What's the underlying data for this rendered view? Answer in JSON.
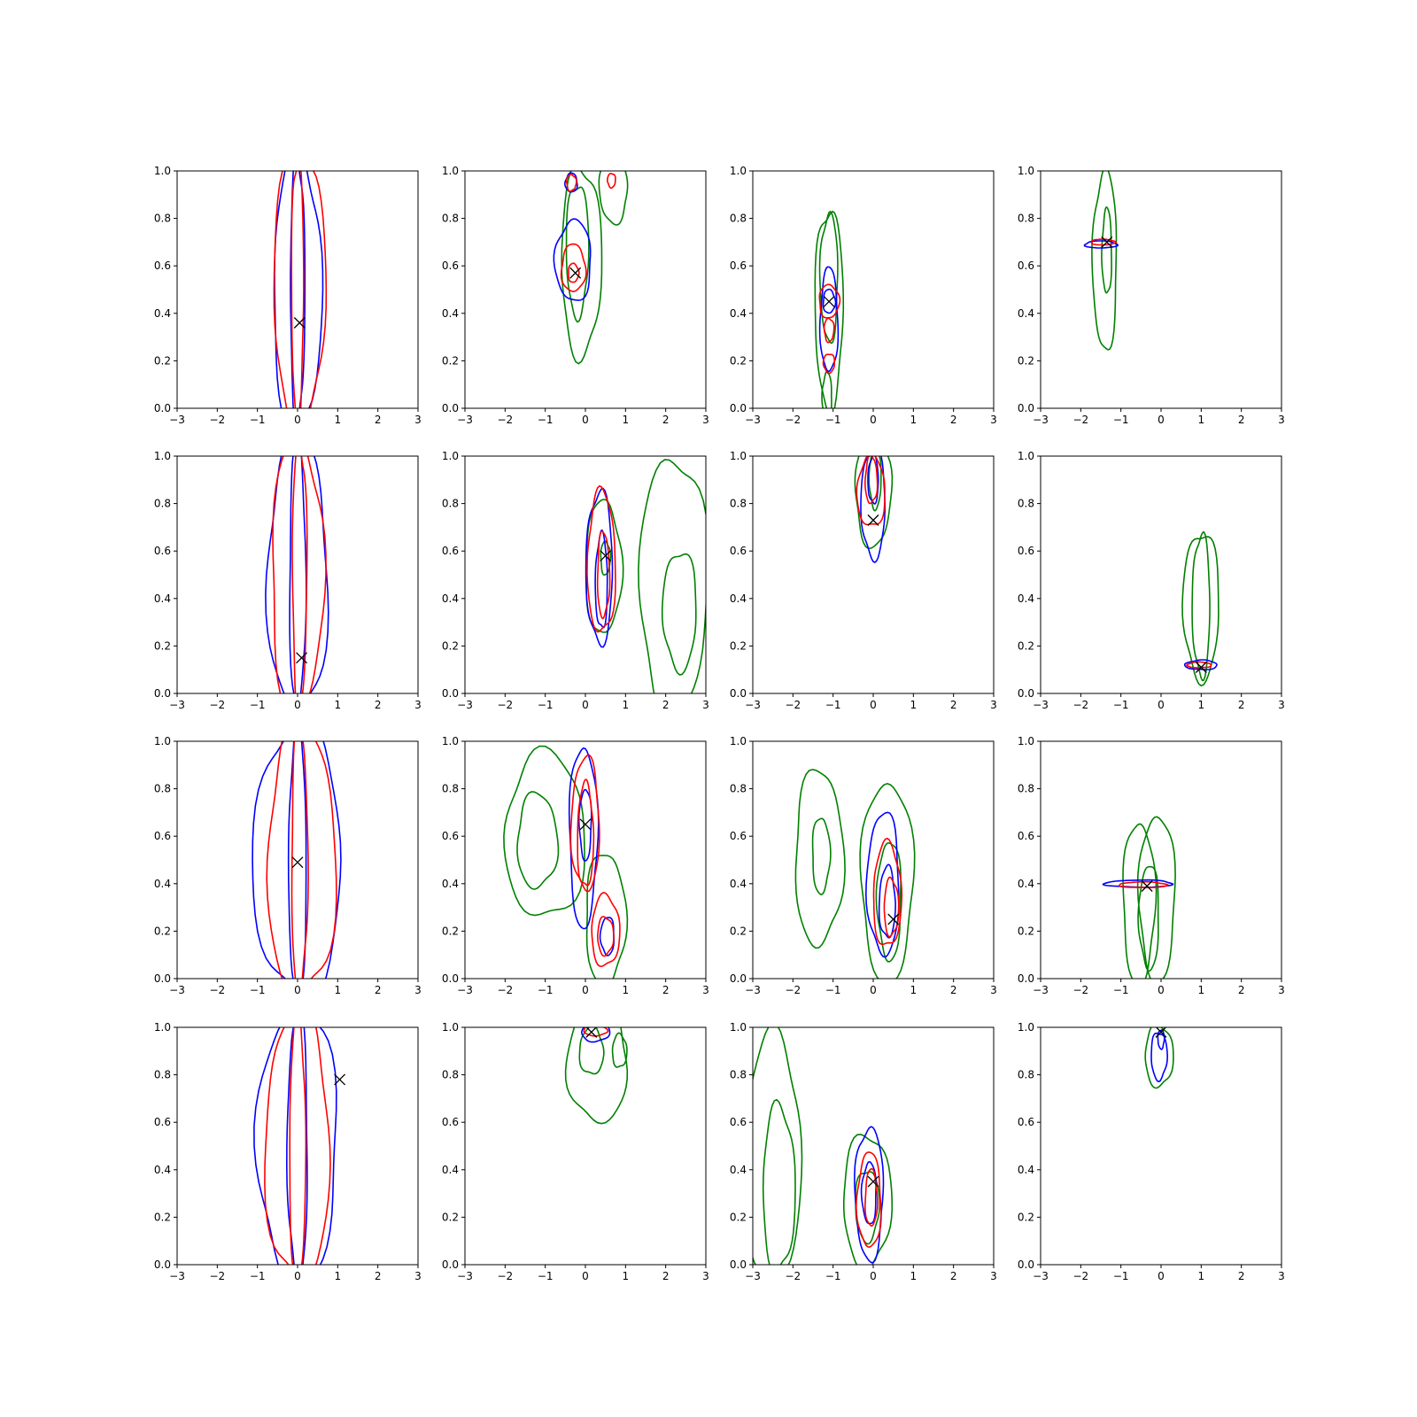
{
  "figure": {
    "grid_rows": 4,
    "grid_cols": 4,
    "colors": {
      "blue": "#0000ff",
      "red": "#ff0000",
      "green": "#008000",
      "marker": "#000000"
    },
    "x_ticks": [
      -3,
      -2,
      -1,
      0,
      1,
      2,
      3
    ],
    "x_tick_labels": [
      "−3",
      "−2",
      "−1",
      "0",
      "1",
      "2",
      "3"
    ],
    "y_ticks": [
      0.0,
      0.2,
      0.4,
      0.6,
      0.8,
      1.0
    ],
    "y_tick_labels": [
      "0.0",
      "0.2",
      "0.4",
      "0.6",
      "0.8",
      "1.0"
    ]
  },
  "chart_data": [
    {
      "type": "contour",
      "xlim": [
        -3,
        3
      ],
      "ylim": [
        0,
        1
      ],
      "marker": [
        0.05,
        0.36
      ],
      "series": [
        {
          "color": "blue",
          "contours": [
            {
              "cx": 0.0,
              "cy": 0.5,
              "rx": 0.6,
              "ry": 0.58
            },
            {
              "cx": 0.0,
              "cy": 0.5,
              "rx": 0.18,
              "ry": 0.57
            }
          ]
        },
        {
          "color": "red",
          "contours": [
            {
              "cx": 0.05,
              "cy": 0.5,
              "rx": 0.65,
              "ry": 0.58
            },
            {
              "cx": 0.0,
              "cy": 0.5,
              "rx": 0.15,
              "ry": 0.57
            }
          ]
        }
      ]
    },
    {
      "type": "contour",
      "xlim": [
        -3,
        3
      ],
      "ylim": [
        0,
        1
      ],
      "marker": [
        -0.25,
        0.57
      ],
      "series": [
        {
          "color": "green",
          "contours": [
            {
              "cx": -0.1,
              "cy": 0.62,
              "rx": 0.5,
              "ry": 0.4
            },
            {
              "cx": -0.2,
              "cy": 0.67,
              "rx": 0.28,
              "ry": 0.28
            },
            {
              "cx": 0.7,
              "cy": 0.92,
              "rx": 0.35,
              "ry": 0.14
            }
          ]
        },
        {
          "color": "blue",
          "contours": [
            {
              "cx": -0.3,
              "cy": 0.62,
              "rx": 0.45,
              "ry": 0.17
            },
            {
              "cx": -0.35,
              "cy": 0.95,
              "rx": 0.15,
              "ry": 0.04
            }
          ]
        },
        {
          "color": "red",
          "contours": [
            {
              "cx": -0.3,
              "cy": 0.59,
              "rx": 0.3,
              "ry": 0.1
            },
            {
              "cx": -0.3,
              "cy": 0.57,
              "rx": 0.13,
              "ry": 0.04
            },
            {
              "cx": -0.35,
              "cy": 0.95,
              "rx": 0.12,
              "ry": 0.035
            },
            {
              "cx": 0.65,
              "cy": 0.96,
              "rx": 0.1,
              "ry": 0.03
            }
          ]
        }
      ]
    },
    {
      "type": "contour",
      "xlim": [
        -3,
        3
      ],
      "ylim": [
        0,
        1
      ],
      "marker": [
        -1.1,
        0.45
      ],
      "series": [
        {
          "color": "green",
          "contours": [
            {
              "cx": -1.1,
              "cy": 0.42,
              "rx": 0.35,
              "ry": 0.42
            },
            {
              "cx": -1.1,
              "cy": 0.55,
              "rx": 0.22,
              "ry": 0.27
            },
            {
              "cx": -1.15,
              "cy": 0.05,
              "rx": 0.12,
              "ry": 0.1
            }
          ]
        },
        {
          "color": "blue",
          "contours": [
            {
              "cx": -1.1,
              "cy": 0.37,
              "rx": 0.22,
              "ry": 0.22
            },
            {
              "cx": -1.1,
              "cy": 0.45,
              "rx": 0.15,
              "ry": 0.05
            }
          ]
        },
        {
          "color": "red",
          "contours": [
            {
              "cx": -1.1,
              "cy": 0.45,
              "rx": 0.25,
              "ry": 0.07
            },
            {
              "cx": -1.1,
              "cy": 0.33,
              "rx": 0.12,
              "ry": 0.05
            },
            {
              "cx": -1.1,
              "cy": 0.19,
              "rx": 0.14,
              "ry": 0.04
            }
          ]
        }
      ]
    },
    {
      "type": "contour",
      "xlim": [
        -3,
        3
      ],
      "ylim": [
        0,
        1
      ],
      "marker": [
        -1.35,
        0.7
      ],
      "series": [
        {
          "color": "green",
          "contours": [
            {
              "cx": -1.4,
              "cy": 0.62,
              "rx": 0.3,
              "ry": 0.38
            },
            {
              "cx": -1.35,
              "cy": 0.66,
              "rx": 0.12,
              "ry": 0.18
            }
          ]
        },
        {
          "color": "blue",
          "contours": [
            {
              "cx": -1.5,
              "cy": 0.69,
              "rx": 0.4,
              "ry": 0.015
            }
          ]
        },
        {
          "color": "red",
          "contours": [
            {
              "cx": -1.45,
              "cy": 0.7,
              "rx": 0.3,
              "ry": 0.012
            }
          ]
        }
      ]
    },
    {
      "type": "contour",
      "xlim": [
        -3,
        3
      ],
      "ylim": [
        0,
        1
      ],
      "marker": [
        0.1,
        0.15
      ],
      "series": [
        {
          "color": "blue",
          "contours": [
            {
              "cx": 0.0,
              "cy": 0.5,
              "rx": 0.75,
              "ry": 0.58
            },
            {
              "cx": 0.0,
              "cy": 0.5,
              "rx": 0.2,
              "ry": 0.57
            }
          ]
        },
        {
          "color": "red",
          "contours": [
            {
              "cx": 0.0,
              "cy": 0.5,
              "rx": 0.65,
              "ry": 0.58
            },
            {
              "cx": 0.05,
              "cy": 0.5,
              "rx": 0.18,
              "ry": 0.57
            }
          ]
        }
      ]
    },
    {
      "type": "contour",
      "xlim": [
        -3,
        3
      ],
      "ylim": [
        0,
        1
      ],
      "marker": [
        0.5,
        0.58
      ],
      "series": [
        {
          "color": "green",
          "contours": [
            {
              "cx": 0.45,
              "cy": 0.53,
              "rx": 0.45,
              "ry": 0.28
            },
            {
              "cx": 0.5,
              "cy": 0.57,
              "rx": 0.12,
              "ry": 0.07
            },
            {
              "cx": 2.2,
              "cy": 0.45,
              "rx": 0.85,
              "ry": 0.55
            },
            {
              "cx": 2.35,
              "cy": 0.35,
              "rx": 0.42,
              "ry": 0.25
            }
          ]
        },
        {
          "color": "blue",
          "contours": [
            {
              "cx": 0.35,
              "cy": 0.53,
              "rx": 0.33,
              "ry": 0.32
            },
            {
              "cx": 0.4,
              "cy": 0.47,
              "rx": 0.15,
              "ry": 0.2
            }
          ]
        },
        {
          "color": "red",
          "contours": [
            {
              "cx": 0.4,
              "cy": 0.55,
              "rx": 0.35,
              "ry": 0.3
            },
            {
              "cx": 0.45,
              "cy": 0.5,
              "rx": 0.15,
              "ry": 0.18
            }
          ]
        }
      ]
    },
    {
      "type": "contour",
      "xlim": [
        -3,
        3
      ],
      "ylim": [
        0,
        1
      ],
      "marker": [
        0.0,
        0.73
      ],
      "series": [
        {
          "color": "green",
          "contours": [
            {
              "cx": 0.0,
              "cy": 0.85,
              "rx": 0.45,
              "ry": 0.23
            },
            {
              "cx": 0.05,
              "cy": 0.9,
              "rx": 0.15,
              "ry": 0.12
            }
          ]
        },
        {
          "color": "blue",
          "contours": [
            {
              "cx": 0.0,
              "cy": 0.8,
              "rx": 0.3,
              "ry": 0.23
            },
            {
              "cx": 0.0,
              "cy": 0.9,
              "rx": 0.13,
              "ry": 0.1
            }
          ]
        },
        {
          "color": "red",
          "contours": [
            {
              "cx": -0.05,
              "cy": 0.85,
              "rx": 0.35,
              "ry": 0.15
            },
            {
              "cx": -0.05,
              "cy": 0.9,
              "rx": 0.15,
              "ry": 0.1
            }
          ]
        }
      ]
    },
    {
      "type": "contour",
      "xlim": [
        -3,
        3
      ],
      "ylim": [
        0,
        1
      ],
      "marker": [
        1.0,
        0.11
      ],
      "series": [
        {
          "color": "green",
          "contours": [
            {
              "cx": 1.0,
              "cy": 0.37,
              "rx": 0.45,
              "ry": 0.31
            },
            {
              "cx": 1.0,
              "cy": 0.37,
              "rx": 0.22,
              "ry": 0.3
            }
          ]
        },
        {
          "color": "blue",
          "contours": [
            {
              "cx": 1.0,
              "cy": 0.12,
              "rx": 0.4,
              "ry": 0.02
            }
          ]
        },
        {
          "color": "red",
          "contours": [
            {
              "cx": 0.95,
              "cy": 0.12,
              "rx": 0.3,
              "ry": 0.012
            }
          ]
        }
      ]
    },
    {
      "type": "contour",
      "xlim": [
        -3,
        3
      ],
      "ylim": [
        0,
        1
      ],
      "marker": [
        0.0,
        0.49
      ],
      "series": [
        {
          "color": "blue",
          "contours": [
            {
              "cx": 0.0,
              "cy": 0.5,
              "rx": 1.1,
              "ry": 0.58
            },
            {
              "cx": 0.0,
              "cy": 0.5,
              "rx": 0.22,
              "ry": 0.57
            }
          ]
        },
        {
          "color": "red",
          "contours": [
            {
              "cx": 0.1,
              "cy": 0.5,
              "rx": 0.85,
              "ry": 0.58
            },
            {
              "cx": 0.05,
              "cy": 0.5,
              "rx": 0.2,
              "ry": 0.57
            }
          ]
        }
      ]
    },
    {
      "type": "contour",
      "xlim": [
        -3,
        3
      ],
      "ylim": [
        0,
        1
      ],
      "marker": [
        0.0,
        0.65
      ],
      "series": [
        {
          "color": "green",
          "contours": [
            {
              "cx": -1.0,
              "cy": 0.6,
              "rx": 1.0,
              "ry": 0.35
            },
            {
              "cx": -1.2,
              "cy": 0.58,
              "rx": 0.5,
              "ry": 0.2
            },
            {
              "cx": 0.5,
              "cy": 0.25,
              "rx": 0.5,
              "ry": 0.28
            }
          ]
        },
        {
          "color": "blue",
          "contours": [
            {
              "cx": -0.05,
              "cy": 0.6,
              "rx": 0.35,
              "ry": 0.38
            },
            {
              "cx": 0.0,
              "cy": 0.65,
              "rx": 0.15,
              "ry": 0.15
            },
            {
              "cx": 0.55,
              "cy": 0.18,
              "rx": 0.17,
              "ry": 0.08
            }
          ]
        },
        {
          "color": "red",
          "contours": [
            {
              "cx": 0.0,
              "cy": 0.65,
              "rx": 0.35,
              "ry": 0.28
            },
            {
              "cx": 0.0,
              "cy": 0.6,
              "rx": 0.2,
              "ry": 0.22
            },
            {
              "cx": 0.5,
              "cy": 0.2,
              "rx": 0.35,
              "ry": 0.15
            },
            {
              "cx": 0.5,
              "cy": 0.18,
              "rx": 0.2,
              "ry": 0.08
            }
          ]
        }
      ]
    },
    {
      "type": "contour",
      "xlim": [
        -3,
        3
      ],
      "ylim": [
        0,
        1
      ],
      "marker": [
        0.5,
        0.25
      ],
      "series": [
        {
          "color": "green",
          "contours": [
            {
              "cx": -1.35,
              "cy": 0.51,
              "rx": 0.6,
              "ry": 0.37
            },
            {
              "cx": -1.3,
              "cy": 0.52,
              "rx": 0.22,
              "ry": 0.16
            },
            {
              "cx": 0.35,
              "cy": 0.41,
              "rx": 0.65,
              "ry": 0.42
            },
            {
              "cx": 0.4,
              "cy": 0.33,
              "rx": 0.3,
              "ry": 0.25
            }
          ]
        },
        {
          "color": "blue",
          "contours": [
            {
              "cx": 0.25,
              "cy": 0.4,
              "rx": 0.4,
              "ry": 0.3
            },
            {
              "cx": 0.35,
              "cy": 0.32,
              "rx": 0.2,
              "ry": 0.15
            }
          ]
        },
        {
          "color": "red",
          "contours": [
            {
              "cx": 0.35,
              "cy": 0.35,
              "rx": 0.35,
              "ry": 0.22
            },
            {
              "cx": 0.45,
              "cy": 0.3,
              "rx": 0.18,
              "ry": 0.12
            }
          ]
        }
      ]
    },
    {
      "type": "contour",
      "xlim": [
        -3,
        3
      ],
      "ylim": [
        0,
        1
      ],
      "marker": [
        -0.35,
        0.39
      ],
      "series": [
        {
          "color": "green",
          "contours": [
            {
              "cx": -0.55,
              "cy": 0.32,
              "rx": 0.4,
              "ry": 0.34
            },
            {
              "cx": -0.1,
              "cy": 0.34,
              "rx": 0.45,
              "ry": 0.35
            },
            {
              "cx": -0.3,
              "cy": 0.26,
              "rx": 0.25,
              "ry": 0.22
            }
          ]
        },
        {
          "color": "blue",
          "contours": [
            {
              "cx": -0.55,
              "cy": 0.4,
              "rx": 0.85,
              "ry": 0.015
            }
          ]
        },
        {
          "color": "red",
          "contours": [
            {
              "cx": -0.45,
              "cy": 0.395,
              "rx": 0.6,
              "ry": 0.012
            }
          ]
        }
      ]
    },
    {
      "type": "contour",
      "xlim": [
        -3,
        3
      ],
      "ylim": [
        0,
        1
      ],
      "marker": [
        1.05,
        0.78
      ],
      "series": [
        {
          "color": "blue",
          "contours": [
            {
              "cx": 0.0,
              "cy": 0.5,
              "rx": 1.0,
              "ry": 0.58
            },
            {
              "cx": 0.0,
              "cy": 0.5,
              "rx": 0.25,
              "ry": 0.57
            }
          ]
        },
        {
          "color": "red",
          "contours": [
            {
              "cx": 0.0,
              "cy": 0.5,
              "rx": 0.8,
              "ry": 0.58
            },
            {
              "cx": 0.0,
              "cy": 0.5,
              "rx": 0.2,
              "ry": 0.57
            }
          ]
        }
      ]
    },
    {
      "type": "contour",
      "xlim": [
        -3,
        3
      ],
      "ylim": [
        0,
        1
      ],
      "marker": [
        0.15,
        0.98
      ],
      "series": [
        {
          "color": "green",
          "contours": [
            {
              "cx": 0.3,
              "cy": 0.85,
              "rx": 0.75,
              "ry": 0.25
            },
            {
              "cx": 0.15,
              "cy": 0.9,
              "rx": 0.3,
              "ry": 0.1
            },
            {
              "cx": 0.85,
              "cy": 0.9,
              "rx": 0.18,
              "ry": 0.07
            }
          ]
        },
        {
          "color": "blue",
          "contours": [
            {
              "cx": 0.25,
              "cy": 0.98,
              "rx": 0.35,
              "ry": 0.04
            }
          ]
        },
        {
          "color": "red",
          "contours": [
            {
              "cx": 0.25,
              "cy": 0.985,
              "rx": 0.3,
              "ry": 0.02
            }
          ]
        }
      ]
    },
    {
      "type": "contour",
      "xlim": [
        -3,
        3
      ],
      "ylim": [
        0,
        1
      ],
      "marker": [
        0.0,
        0.35
      ],
      "series": [
        {
          "color": "green",
          "contours": [
            {
              "cx": -2.5,
              "cy": 0.45,
              "rx": 0.7,
              "ry": 0.52
            },
            {
              "cx": -2.35,
              "cy": 0.32,
              "rx": 0.4,
              "ry": 0.35
            },
            {
              "cx": -0.15,
              "cy": 0.27,
              "rx": 0.6,
              "ry": 0.28
            },
            {
              "cx": -0.15,
              "cy": 0.25,
              "rx": 0.3,
              "ry": 0.15
            }
          ]
        },
        {
          "color": "blue",
          "contours": [
            {
              "cx": -0.1,
              "cy": 0.3,
              "rx": 0.35,
              "ry": 0.28
            },
            {
              "cx": -0.1,
              "cy": 0.3,
              "rx": 0.18,
              "ry": 0.13
            }
          ]
        },
        {
          "color": "red",
          "contours": [
            {
              "cx": -0.1,
              "cy": 0.27,
              "rx": 0.3,
              "ry": 0.2
            },
            {
              "cx": -0.05,
              "cy": 0.28,
              "rx": 0.15,
              "ry": 0.12
            }
          ]
        }
      ]
    },
    {
      "type": "contour",
      "xlim": [
        -3,
        3
      ],
      "ylim": [
        0,
        1
      ],
      "marker": [
        0.0,
        0.98
      ],
      "series": [
        {
          "color": "green",
          "contours": [
            {
              "cx": -0.05,
              "cy": 0.88,
              "rx": 0.35,
              "ry": 0.13
            }
          ]
        },
        {
          "color": "blue",
          "contours": [
            {
              "cx": -0.05,
              "cy": 0.88,
              "rx": 0.2,
              "ry": 0.1
            },
            {
              "cx": 0.0,
              "cy": 0.95,
              "rx": 0.08,
              "ry": 0.04
            }
          ]
        }
      ]
    }
  ]
}
